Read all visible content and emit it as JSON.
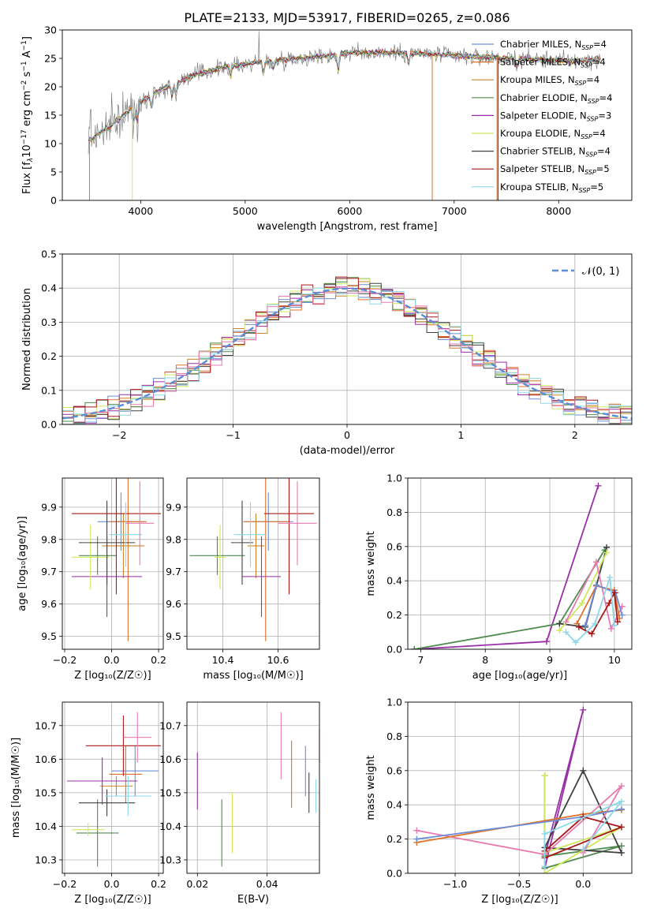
{
  "figure_title": "PLATE=2133, MJD=53917, FIBERID=0265, z=0.086",
  "colors": {
    "chabrier_miles": "#6c8ed8",
    "salpeter_miles": "#e07028",
    "kroupa_miles": "#c8842c",
    "chabrier_elodie": "#4f8a4f",
    "salpeter_elodie": "#9b2fa8",
    "kroupa_elodie": "#cfe85a",
    "chabrier_stelib": "#404040",
    "salpeter_stelib": "#a81818",
    "kroupa_stelib": "#8cd8e8",
    "pink": "#e87ab0",
    "data": "#808080"
  },
  "chart_data": [
    {
      "id": "spectrum",
      "type": "line",
      "xlabel": "wavelength [Angstrom, rest frame]",
      "ylabel_parts": [
        "Flux [f",
        "λ",
        "10",
        "−17",
        " erg cm",
        "−2",
        " s",
        "−1",
        " A",
        "−1",
        "]"
      ],
      "xlim": [
        3250,
        8700
      ],
      "ylim": [
        0,
        30
      ],
      "xticks": [
        4000,
        5000,
        6000,
        7000,
        8000
      ],
      "yticks": [
        0,
        5,
        10,
        15,
        20,
        25,
        30
      ],
      "continuum": {
        "x": [
          3500,
          3700,
          3900,
          4000,
          4200,
          4500,
          4800,
          5000,
          5200,
          5500,
          5800,
          6000,
          6200,
          6500,
          6800,
          7000,
          7200,
          7500,
          7800,
          8000,
          8200,
          8400
        ],
        "y": [
          10.5,
          13,
          16,
          17.5,
          19.5,
          22,
          23.5,
          24,
          24.5,
          25,
          25.5,
          26,
          26,
          26,
          25.8,
          25.5,
          25.3,
          25,
          24.8,
          24.6,
          24.6,
          24.8
        ]
      },
      "legend": [
        {
          "name": "Chabrier MILES",
          "n": "4",
          "color_key": "chabrier_miles"
        },
        {
          "name": "Salpeter MILES",
          "n": "4",
          "color_key": "salpeter_miles"
        },
        {
          "name": "Kroupa MILES",
          "n": "4",
          "color_key": "kroupa_miles"
        },
        {
          "name": "Chabrier ELODIE",
          "n": "4",
          "color_key": "chabrier_elodie"
        },
        {
          "name": "Salpeter ELODIE",
          "n": "3",
          "color_key": "salpeter_elodie"
        },
        {
          "name": "Kroupa ELODIE",
          "n": "4",
          "color_key": "kroupa_elodie"
        },
        {
          "name": "Chabrier STELIB",
          "n": "4",
          "color_key": "chabrier_stelib"
        },
        {
          "name": "Salpeter STELIB",
          "n": "5",
          "color_key": "salpeter_stelib"
        },
        {
          "name": "Kroupa STELIB",
          "n": "5",
          "color_key": "kroupa_stelib"
        }
      ],
      "legend_placement": "top-right"
    },
    {
      "id": "residuals",
      "type": "step",
      "xlabel": "(data-model)/error",
      "ylabel": "Normed distribution",
      "xlim": [
        -2.5,
        2.5
      ],
      "ylim": [
        0,
        0.5
      ],
      "xticks": [
        -2,
        -1,
        0,
        1,
        2
      ],
      "xtick_labels": [
        "−2",
        "−1",
        "0",
        "1",
        "2"
      ],
      "yticks": [
        0.0,
        0.1,
        0.2,
        0.3,
        0.4,
        0.5
      ],
      "ytick_labels": [
        "0.0",
        "0.1",
        "0.2",
        "0.3",
        "0.4",
        "0.5"
      ],
      "bin_width": 0.1,
      "grid": true,
      "legend": [
        {
          "name": "𝒩(0, 1)",
          "style": "dashed",
          "color": "#5b8ed6"
        }
      ],
      "legend_placement": "top-right"
    },
    {
      "id": "age_vs_Z",
      "type": "errorbar",
      "xlabel": "Z [log₁₀(Z/Z☉)]",
      "ylabel": "age  [log₁₀(age/yr)]",
      "xlim": [
        -0.21,
        0.22
      ],
      "ylim": [
        9.46,
        9.99
      ],
      "xticks": [
        -0.2,
        0.0,
        0.2
      ],
      "xtick_labels": [
        "−0.2",
        "0.0",
        "0.2"
      ],
      "yticks": [
        9.5,
        9.6,
        9.7,
        9.8,
        9.9
      ],
      "ytick_labels": [
        "9.5",
        "9.6",
        "9.7",
        "9.8",
        "9.9"
      ],
      "points": [
        {
          "x": 0.04,
          "y": 9.855,
          "xerr": 0.1,
          "yerr": 0.09,
          "color_key": "chabrier_miles"
        },
        {
          "x": 0.07,
          "y": 9.855,
          "xerr": 0.08,
          "yerr": 0.37,
          "color_key": "salpeter_miles"
        },
        {
          "x": 0.05,
          "y": 9.78,
          "xerr": 0.09,
          "yerr": 0.1,
          "color_key": "kroupa_miles"
        },
        {
          "x": -0.06,
          "y": 9.75,
          "xerr": 0.08,
          "yerr": 0.06,
          "color_key": "chabrier_elodie"
        },
        {
          "x": -0.02,
          "y": 9.685,
          "xerr": 0.15,
          "yerr": 0.125,
          "color_key": "salpeter_elodie"
        },
        {
          "x": -0.09,
          "y": 9.745,
          "xerr": 0.08,
          "yerr": 0.1,
          "color_key": "kroupa_elodie"
        },
        {
          "x": -0.02,
          "y": 9.79,
          "xerr": 0.12,
          "yerr": 0.13,
          "color_key": "chabrier_stelib"
        },
        {
          "x": 0.02,
          "y": 9.88,
          "xerr": 0.19,
          "yerr": 0.25,
          "color_key": "salpeter_stelib"
        },
        {
          "x": 0.06,
          "y": 9.815,
          "xerr": 0.07,
          "yerr": 0.1,
          "color_key": "kroupa_stelib"
        },
        {
          "x": 0.12,
          "y": 9.85,
          "xerr": 0.06,
          "yerr": 0.13,
          "color_key": "pink"
        }
      ]
    },
    {
      "id": "age_vs_mass",
      "type": "errorbar",
      "xlabel": "mass [log₁₀(M/M☉)]",
      "xlim": [
        10.27,
        10.75
      ],
      "ylim": [
        9.46,
        9.99
      ],
      "xticks": [
        10.4,
        10.6
      ],
      "xtick_labels": [
        "10.4",
        "10.6"
      ],
      "yticks": [
        9.5,
        9.6,
        9.7,
        9.8,
        9.9
      ],
      "ytick_labels": [
        "9.5",
        "9.6",
        "9.7",
        "9.8",
        "9.9"
      ],
      "points": [
        {
          "x": 10.565,
          "y": 9.855,
          "xerr": 0.09,
          "yerr": 0.09,
          "color_key": "chabrier_miles"
        },
        {
          "x": 10.555,
          "y": 9.855,
          "xerr": 0.08,
          "yerr": 0.37,
          "color_key": "salpeter_miles"
        },
        {
          "x": 10.52,
          "y": 9.78,
          "xerr": 0.03,
          "yerr": 0.1,
          "color_key": "kroupa_miles"
        },
        {
          "x": 10.38,
          "y": 9.75,
          "xerr": 0.1,
          "yerr": 0.06,
          "color_key": "chabrier_elodie"
        },
        {
          "x": 10.54,
          "y": 9.685,
          "xerr": 0.07,
          "yerr": 0.125,
          "color_key": "salpeter_elodie"
        },
        {
          "x": 10.39,
          "y": 9.745,
          "xerr": 0.02,
          "yerr": 0.1,
          "color_key": "kroupa_elodie"
        },
        {
          "x": 10.47,
          "y": 9.79,
          "xerr": 0.04,
          "yerr": 0.13,
          "color_key": "chabrier_stelib"
        },
        {
          "x": 10.64,
          "y": 9.88,
          "xerr": 0.09,
          "yerr": 0.25,
          "color_key": "salpeter_stelib"
        },
        {
          "x": 10.5,
          "y": 9.815,
          "xerr": 0.06,
          "yerr": 0.1,
          "color_key": "kroupa_stelib"
        },
        {
          "x": 10.67,
          "y": 9.85,
          "xerr": 0.07,
          "yerr": 0.13,
          "color_key": "pink"
        }
      ]
    },
    {
      "id": "mass_weight_vs_age",
      "type": "line",
      "xlabel": "age  [log₁₀(age/yr)]",
      "ylabel": "mass weight",
      "xlim": [
        6.8,
        10.27
      ],
      "ylim": [
        0,
        1.0
      ],
      "xticks": [
        7,
        8,
        9,
        10
      ],
      "yticks": [
        0.0,
        0.2,
        0.4,
        0.6,
        0.8,
        1.0
      ],
      "ytick_labels": [
        "0.0",
        "0.2",
        "0.4",
        "0.6",
        "0.8",
        "1.0"
      ],
      "grid": true,
      "series": [
        {
          "color_key": "salpeter_elodie",
          "x": [
            6.9,
            8.95,
            9.75
          ],
          "y": [
            0.0,
            0.045,
            0.955
          ]
        },
        {
          "color_key": "chabrier_elodie",
          "x": [
            6.9,
            9.15,
            9.85
          ],
          "y": [
            0.0,
            0.15,
            0.58
          ]
        },
        {
          "color_key": "chabrier_stelib",
          "x": [
            9.15,
            9.55,
            9.88
          ],
          "y": [
            0.15,
            0.13,
            0.595
          ]
        },
        {
          "color_key": "kroupa_elodie",
          "x": [
            9.15,
            9.5,
            9.88
          ],
          "y": [
            0.11,
            0.27,
            0.565
          ]
        },
        {
          "color_key": "pink",
          "x": [
            9.25,
            9.72,
            9.95,
            10.12
          ],
          "y": [
            0.16,
            0.51,
            0.12,
            0.25
          ]
        },
        {
          "color_key": "salpeter_miles",
          "x": [
            9.42,
            9.72,
            10.0,
            10.08
          ],
          "y": [
            0.15,
            0.37,
            0.345,
            0.18
          ]
        },
        {
          "color_key": "chabrier_miles",
          "x": [
            9.55,
            9.72,
            10.02,
            10.12
          ],
          "y": [
            0.14,
            0.375,
            0.33,
            0.2
          ]
        },
        {
          "color_key": "salpeter_stelib",
          "x": [
            9.45,
            9.65,
            9.92,
            10.0,
            10.05
          ],
          "y": [
            0.13,
            0.09,
            0.27,
            0.33,
            0.16
          ]
        },
        {
          "color_key": "kroupa_stelib",
          "x": [
            9.25,
            9.4,
            9.7,
            9.93,
            10.0
          ],
          "y": [
            0.1,
            0.04,
            0.15,
            0.42,
            0.14
          ]
        }
      ]
    },
    {
      "id": "mass_vs_Z",
      "type": "errorbar",
      "xlabel": "Z [log₁₀(Z/Z☉)]",
      "ylabel": "mass [log₁₀(M/M☉)]",
      "xlim": [
        -0.21,
        0.22
      ],
      "ylim": [
        10.26,
        10.77
      ],
      "xticks": [
        -0.2,
        0.0,
        0.2
      ],
      "xtick_labels": [
        "−0.2",
        "0.0",
        "0.2"
      ],
      "yticks": [
        10.3,
        10.4,
        10.5,
        10.6,
        10.7
      ],
      "ytick_labels": [
        "10.3",
        "10.4",
        "10.5",
        "10.6",
        "10.7"
      ],
      "points": [
        {
          "x": 0.1,
          "y": 10.565,
          "xerr": 0.1,
          "yerr": 0.075,
          "color_key": "chabrier_miles"
        },
        {
          "x": 0.06,
          "y": 10.555,
          "xerr": 0.07,
          "yerr": 0.085,
          "color_key": "salpeter_miles"
        },
        {
          "x": 0.02,
          "y": 10.52,
          "xerr": 0.07,
          "yerr": 0.03,
          "color_key": "kroupa_miles"
        },
        {
          "x": -0.06,
          "y": 10.38,
          "xerr": 0.09,
          "yerr": 0.1,
          "color_key": "chabrier_elodie"
        },
        {
          "x": -0.04,
          "y": 10.535,
          "xerr": 0.15,
          "yerr": 0.07,
          "color_key": "salpeter_elodie"
        },
        {
          "x": -0.1,
          "y": 10.39,
          "xerr": 0.07,
          "yerr": 0.02,
          "color_key": "kroupa_elodie"
        },
        {
          "x": -0.02,
          "y": 10.47,
          "xerr": 0.12,
          "yerr": 0.04,
          "color_key": "chabrier_stelib"
        },
        {
          "x": 0.05,
          "y": 10.64,
          "xerr": 0.16,
          "yerr": 0.09,
          "color_key": "salpeter_stelib"
        },
        {
          "x": 0.07,
          "y": 10.49,
          "xerr": 0.1,
          "yerr": 0.06,
          "color_key": "kroupa_stelib"
        },
        {
          "x": 0.11,
          "y": 10.665,
          "xerr": 0.06,
          "yerr": 0.075,
          "color_key": "pink"
        }
      ]
    },
    {
      "id": "mass_vs_EBV",
      "type": "errorbar",
      "xlabel": "E(B-V)",
      "xlim": [
        0.017,
        0.055
      ],
      "ylim": [
        10.26,
        10.77
      ],
      "xticks": [
        0.02,
        0.04
      ],
      "xtick_labels": [
        "0.02",
        "0.04"
      ],
      "yticks": [
        10.3,
        10.4,
        10.5,
        10.6,
        10.7
      ],
      "ytick_labels": [
        "10.3",
        "10.4",
        "10.5",
        "10.6",
        "10.7"
      ],
      "points": [
        {
          "x": 0.051,
          "y": 10.565,
          "xerr": 0,
          "yerr": 0.075,
          "color_key": "chabrier_miles"
        },
        {
          "x": 0.047,
          "y": 10.555,
          "xerr": 0,
          "yerr": 0.1,
          "color_key": "salpeter_miles"
        },
        {
          "x": 0.02,
          "y": 10.535,
          "xerr": 0,
          "yerr": 0.085,
          "color_key": "salpeter_elodie"
        },
        {
          "x": 0.027,
          "y": 10.38,
          "xerr": 0,
          "yerr": 0.1,
          "color_key": "chabrier_elodie"
        },
        {
          "x": 0.03,
          "y": 10.41,
          "xerr": 0,
          "yerr": 0.09,
          "color_key": "kroupa_elodie"
        },
        {
          "x": 0.052,
          "y": 10.5,
          "xerr": 0,
          "yerr": 0.06,
          "color_key": "chabrier_stelib"
        },
        {
          "x": 0.055,
          "y": 10.64,
          "xerr": 0,
          "yerr": 0.05,
          "color_key": "salpeter_stelib"
        },
        {
          "x": 0.054,
          "y": 10.49,
          "xerr": 0,
          "yerr": 0.05,
          "color_key": "kroupa_stelib"
        },
        {
          "x": 0.044,
          "y": 10.64,
          "xerr": 0,
          "yerr": 0.1,
          "color_key": "pink"
        }
      ]
    },
    {
      "id": "mass_weight_vs_Z",
      "type": "line",
      "xlabel": "Z [log₁₀(Z/Z☉)]",
      "ylabel": "mass weight",
      "xlim": [
        -1.37,
        0.38
      ],
      "ylim": [
        0,
        1.0
      ],
      "xticks": [
        -1.0,
        -0.5,
        0.0
      ],
      "xtick_labels": [
        "−1.0",
        "−0.5",
        "0.0"
      ],
      "yticks": [
        0.0,
        0.2,
        0.4,
        0.6,
        0.8,
        1.0
      ],
      "ytick_labels": [
        "0.0",
        "0.2",
        "0.4",
        "0.6",
        "0.8",
        "1.0"
      ],
      "grid": true,
      "series": [
        {
          "color_key": "salpeter_elodie",
          "x": [
            -0.3,
            0.0,
            -0.3
          ],
          "y": [
            0.03,
            0.955,
            0.1
          ]
        },
        {
          "color_key": "chabrier_elodie",
          "x": [
            -0.3,
            -0.3,
            0.3,
            -0.3
          ],
          "y": [
            0.57,
            0.03,
            0.16,
            0.1
          ]
        },
        {
          "color_key": "chabrier_stelib",
          "x": [
            -0.3,
            0.0,
            0.3,
            -0.3
          ],
          "y": [
            0.15,
            0.6,
            0.12,
            0.15
          ]
        },
        {
          "color_key": "kroupa_elodie",
          "x": [
            -0.3,
            -0.3,
            0.3,
            -0.3
          ],
          "y": [
            0.57,
            0.0,
            0.27,
            0.12
          ]
        },
        {
          "color_key": "pink",
          "x": [
            -1.3,
            -0.3,
            0.3,
            0.0
          ],
          "y": [
            0.25,
            0.11,
            0.51,
            0.12
          ]
        },
        {
          "color_key": "salpeter_miles",
          "x": [
            -1.3,
            0.0,
            0.3
          ],
          "y": [
            0.18,
            0.345,
            0.37
          ]
        },
        {
          "color_key": "chabrier_miles",
          "x": [
            -1.3,
            0.0,
            0.3
          ],
          "y": [
            0.2,
            0.33,
            0.375
          ]
        },
        {
          "color_key": "salpeter_stelib",
          "x": [
            -0.3,
            0.0,
            0.3,
            -0.3
          ],
          "y": [
            0.13,
            0.33,
            0.27,
            0.09
          ]
        },
        {
          "color_key": "kroupa_stelib",
          "x": [
            -0.3,
            -0.3,
            0.3,
            0.0
          ],
          "y": [
            0.04,
            0.23,
            0.42,
            0.14
          ]
        }
      ]
    }
  ]
}
